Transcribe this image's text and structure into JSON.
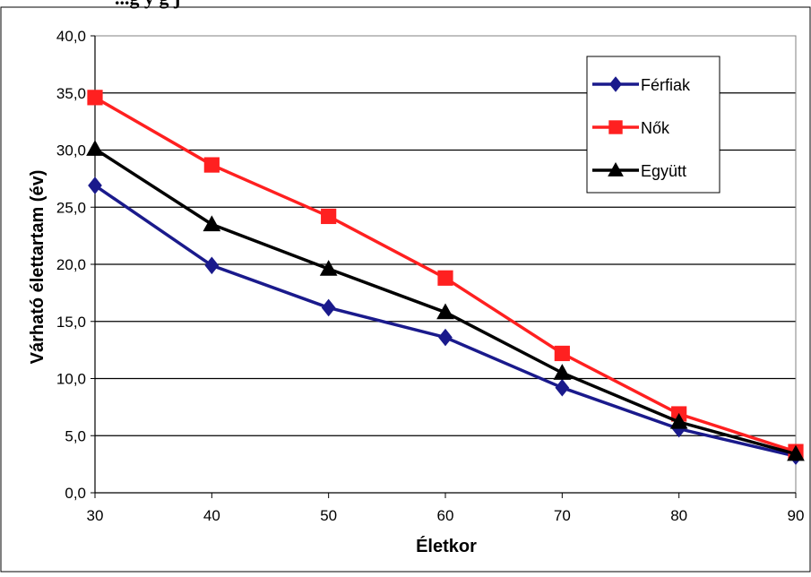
{
  "caption_fragment": "...g y g j",
  "chart_data": {
    "type": "line",
    "title": "",
    "xlabel": "Életkor",
    "ylabel": "Várható élettartam (év)",
    "xlim": [
      30,
      90
    ],
    "ylim": [
      0,
      40
    ],
    "x": [
      30,
      40,
      50,
      60,
      70,
      80,
      90
    ],
    "xtick_labels": [
      "30",
      "40",
      "50",
      "60",
      "70",
      "80",
      "90"
    ],
    "ytick_labels": [
      "0,0",
      "5,0",
      "10,0",
      "15,0",
      "20,0",
      "25,0",
      "30,0",
      "35,0",
      "40,0"
    ],
    "grid": "horizontal",
    "legend_position": "top-right",
    "series": [
      {
        "name": "Férfiak",
        "color": "#1a1a8c",
        "marker": "diamond",
        "values": [
          26.9,
          19.9,
          16.2,
          13.6,
          9.2,
          5.6,
          3.2
        ]
      },
      {
        "name": "Nők",
        "color": "#ff2020",
        "marker": "square",
        "values": [
          34.6,
          28.7,
          24.2,
          18.8,
          12.2,
          6.9,
          3.6
        ]
      },
      {
        "name": "Együtt",
        "color": "#000000",
        "marker": "triangle",
        "values": [
          30.1,
          23.5,
          19.6,
          15.8,
          10.5,
          6.2,
          3.4
        ]
      }
    ]
  }
}
